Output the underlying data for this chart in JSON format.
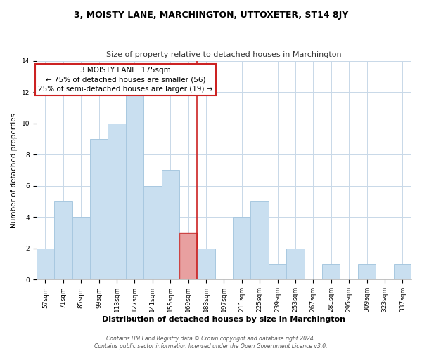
{
  "title": "3, MOISTY LANE, MARCHINGTON, UTTOXETER, ST14 8JY",
  "subtitle": "Size of property relative to detached houses in Marchington",
  "xlabel": "Distribution of detached houses by size in Marchington",
  "ylabel": "Number of detached properties",
  "bin_labels": [
    "57sqm",
    "71sqm",
    "85sqm",
    "99sqm",
    "113sqm",
    "127sqm",
    "141sqm",
    "155sqm",
    "169sqm",
    "183sqm",
    "197sqm",
    "211sqm",
    "225sqm",
    "239sqm",
    "253sqm",
    "267sqm",
    "281sqm",
    "295sqm",
    "309sqm",
    "323sqm",
    "337sqm"
  ],
  "bar_heights": [
    2,
    5,
    4,
    9,
    10,
    12,
    6,
    7,
    3,
    2,
    0,
    4,
    5,
    1,
    2,
    0,
    1,
    0,
    1,
    0,
    1
  ],
  "highlight_index": 8,
  "bar_color_normal": "#c9dff0",
  "bar_color_highlight": "#e8a0a0",
  "bar_edge_color": "#a8c8e0",
  "bar_highlight_edge": "#cc4444",
  "vline_color": "#cc2222",
  "ylim": [
    0,
    14
  ],
  "annotation_text": "3 MOISTY LANE: 175sqm\n← 75% of detached houses are smaller (56)\n25% of semi-detached houses are larger (19) →",
  "annotation_box_color": "#ffffff",
  "annotation_box_edge": "#cc2222",
  "footer_line1": "Contains HM Land Registry data © Crown copyright and database right 2024.",
  "footer_line2": "Contains public sector information licensed under the Open Government Licence v3.0.",
  "background_color": "#ffffff",
  "grid_color": "#c8d8e8",
  "title_fontsize": 9,
  "subtitle_fontsize": 8,
  "ylabel_fontsize": 7.5,
  "xlabel_fontsize": 8,
  "tick_fontsize": 6.5,
  "annotation_fontsize": 7.5,
  "footer_fontsize": 5.5
}
